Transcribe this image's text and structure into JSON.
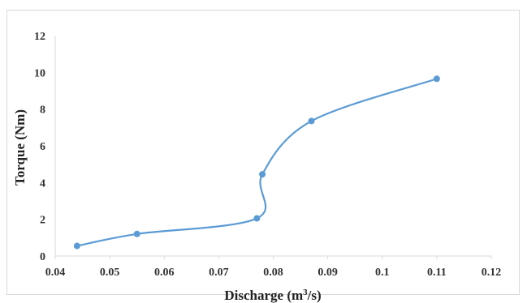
{
  "chart_data": {
    "type": "line",
    "smooth": true,
    "title": "",
    "xlabel": "Discharge (m³/s)",
    "xlabel_parts": {
      "before": "Discharge (m",
      "sup": "3",
      "after": "/s)"
    },
    "ylabel": "Torque  (Nm)",
    "xlim": [
      0.04,
      0.12
    ],
    "ylim": [
      0,
      12
    ],
    "x_ticks": [
      "0.04",
      "0.05",
      "0.06",
      "0.07",
      "0.08",
      "0.09",
      "0.1",
      "0.11",
      "0.12"
    ],
    "y_ticks": [
      "0",
      "2",
      "4",
      "6",
      "8",
      "10",
      "12"
    ],
    "grid": false,
    "legend": "none",
    "series": [
      {
        "color": "#5b9bd5",
        "x": [
          0.044,
          0.055,
          0.077,
          0.078,
          0.087,
          0.11
        ],
        "y": [
          0.55,
          1.2,
          2.05,
          4.45,
          7.35,
          9.65
        ]
      }
    ]
  }
}
